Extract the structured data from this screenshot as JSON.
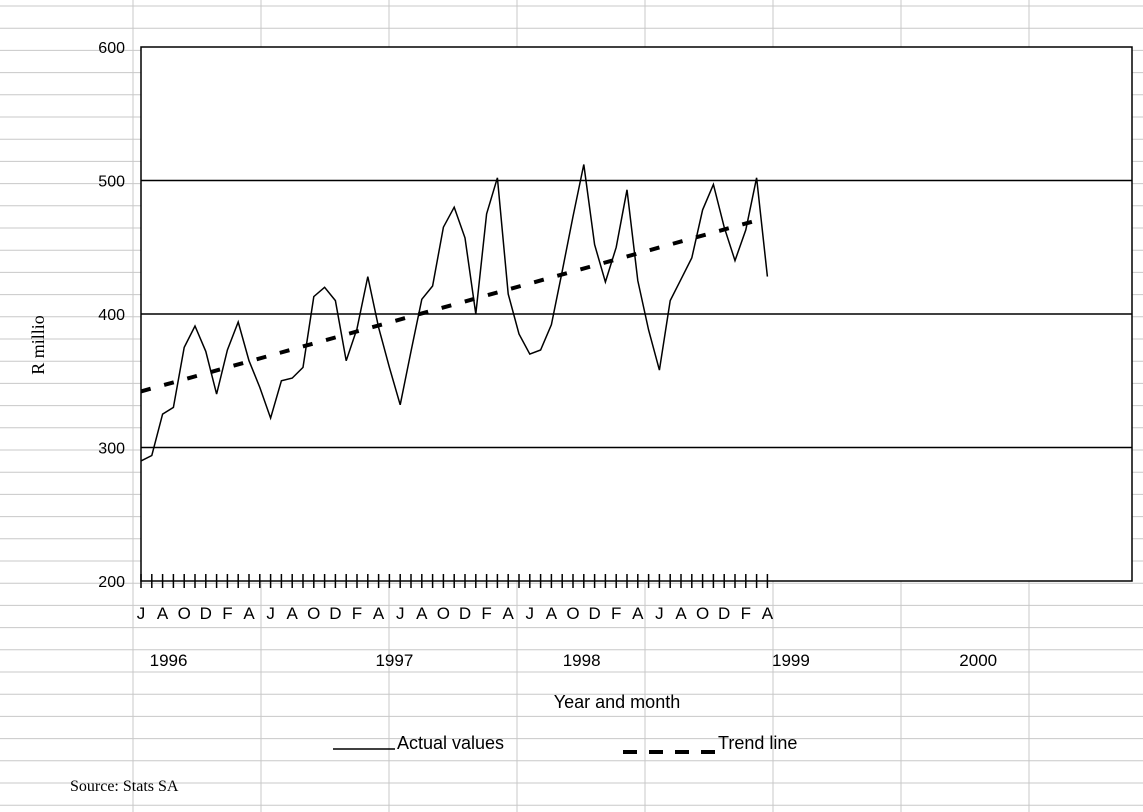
{
  "chart_data": {
    "type": "line",
    "title": "",
    "xlabel": "Year and month",
    "ylabel": "R millio",
    "ylim": [
      200,
      600
    ],
    "yticks": [
      "200",
      "300",
      "400",
      "500",
      "600"
    ],
    "grid": "horizontal",
    "legend": "bottom",
    "x_tick_labels": [
      "J",
      "A",
      "O",
      "D",
      "F",
      "A",
      "J",
      "A",
      "O",
      "D",
      "F",
      "A",
      "J",
      "A",
      "O",
      "D",
      "F",
      "A",
      "J",
      "A",
      "O",
      "D",
      "F",
      "A",
      "J",
      "A",
      "O",
      "D",
      "F",
      "A"
    ],
    "year_labels": [
      "1996",
      "1997",
      "1998",
      "1999",
      "2000"
    ],
    "x_start": "1996-06",
    "x_end": "2001-04",
    "series": [
      {
        "name": "Actual values",
        "style": "solid",
        "color": "#000000",
        "values": [
          290,
          294,
          325,
          330,
          375,
          391,
          372,
          340,
          373,
          394,
          365,
          345,
          322,
          350,
          352,
          360,
          413,
          420,
          410,
          365,
          389,
          428,
          390,
          360,
          332,
          372,
          411,
          421,
          465,
          480,
          457,
          400,
          475,
          502,
          415,
          385,
          370,
          373,
          392,
          432,
          473,
          512,
          452,
          424,
          450,
          493,
          425,
          388,
          358,
          410,
          426,
          442,
          478,
          497,
          465,
          440,
          463,
          502,
          428
        ]
      },
      {
        "name": "Trend line",
        "style": "dashed",
        "color": "#000000",
        "values": [
          342,
          470
        ]
      }
    ],
    "source": "Source: Stats SA"
  }
}
